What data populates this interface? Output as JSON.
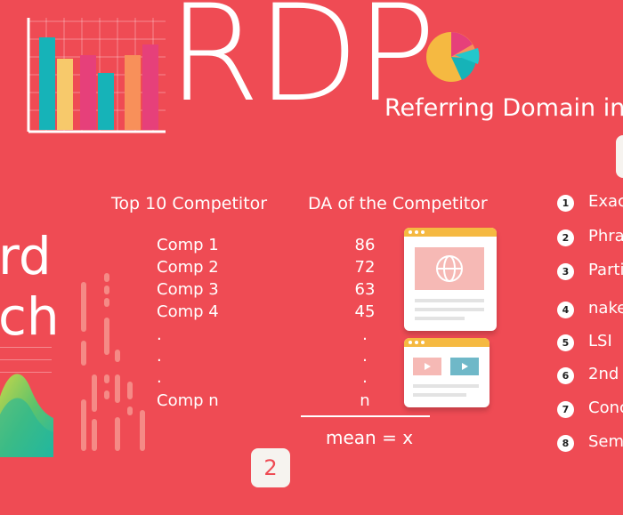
{
  "title": "RDP",
  "subtitle": "Referring Domain into",
  "left_words": [
    "rd",
    "ch"
  ],
  "table": {
    "col1": "Top 10 Competitor",
    "col2": "DA of the Competitor",
    "rows": [
      {
        "name": "Comp 1",
        "da": "86"
      },
      {
        "name": "Comp 2",
        "da": "72"
      },
      {
        "name": "Comp 3",
        "da": "63"
      },
      {
        "name": "Comp 4",
        "da": "45"
      },
      {
        "name": ".",
        "da": "."
      },
      {
        "name": ".",
        "da": "."
      },
      {
        "name": ".",
        "da": "."
      },
      {
        "name": "Comp n",
        "da": "n"
      }
    ],
    "mean": "mean = x"
  },
  "page_number": "2",
  "list": [
    {
      "n": "1",
      "label": "Exac"
    },
    {
      "n": "2",
      "label": "Phra"
    },
    {
      "n": "3",
      "label": "Parti"
    },
    {
      "n": "4",
      "label": "nake"
    },
    {
      "n": "5",
      "label": "LSI"
    },
    {
      "n": "6",
      "label": "2nd"
    },
    {
      "n": "7",
      "label": "Conc"
    },
    {
      "n": "8",
      "label": "Sem"
    }
  ],
  "colors": {
    "background": "#ef4b54",
    "yellow": "#f5b941",
    "teal": "#16b3b8",
    "pink": "#e6407a",
    "orange": "#f8905a"
  }
}
